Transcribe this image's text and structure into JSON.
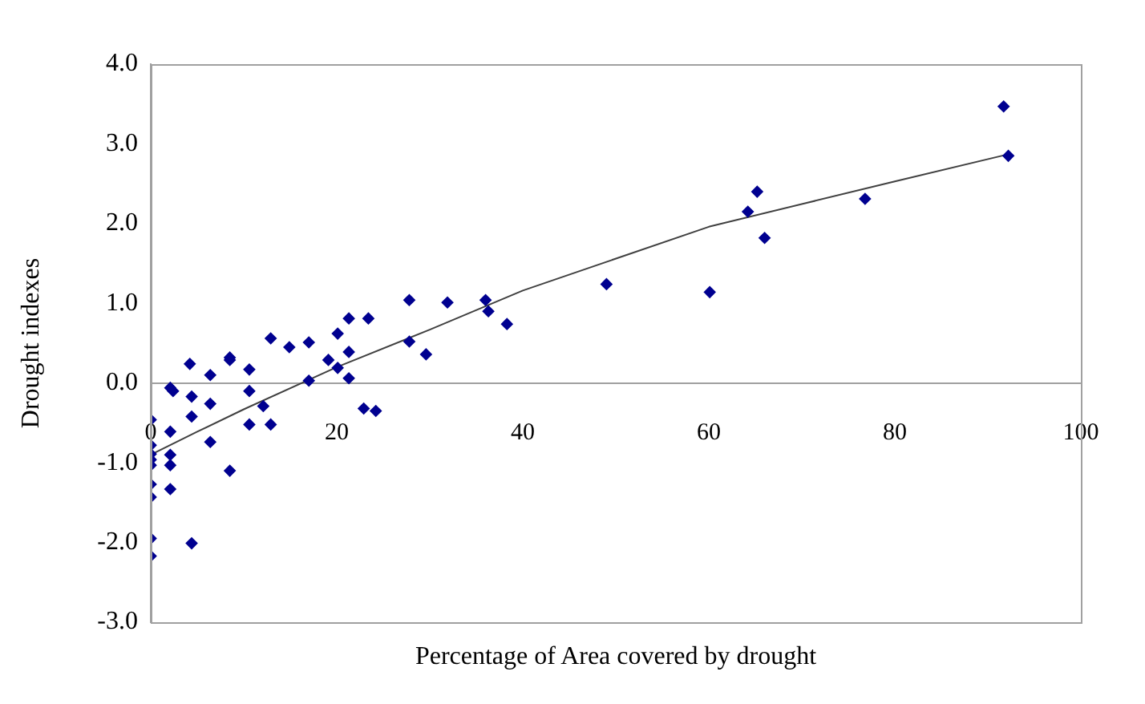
{
  "chart_data": {
    "type": "scatter",
    "xlabel": "Percentage of Area covered by drought",
    "ylabel": "Drought indexes",
    "xlim": [
      0,
      100
    ],
    "xticks": [
      0,
      20,
      40,
      60,
      80,
      100
    ],
    "ylim": [
      -3,
      4
    ],
    "yticks": [
      {
        "value": -3,
        "label": "-3.0"
      },
      {
        "value": -2,
        "label": "-2.0"
      },
      {
        "value": -1,
        "label": "-1.0"
      },
      {
        "value": 0,
        "label": "0.0"
      },
      {
        "value": 1,
        "label": "1.0"
      },
      {
        "value": 2,
        "label": "2.0"
      },
      {
        "value": 3,
        "label": "3.0"
      },
      {
        "value": 4,
        "label": "4.0"
      }
    ],
    "grid": false,
    "legend": false,
    "marker": "diamond",
    "series": [
      {
        "color": "#000090",
        "x": [
          0,
          0,
          0,
          0,
          0,
          0,
          0,
          0,
          0,
          2.1,
          2.4,
          2.1,
          2.1,
          2.1,
          2.1,
          4.2,
          4.4,
          4.4,
          4.4,
          6.4,
          6.4,
          6.4,
          8.5,
          8.5,
          8.5,
          10.6,
          10.6,
          10.6,
          12.1,
          12.9,
          12.9,
          14.9,
          17.0,
          17.0,
          19.1,
          20.1,
          20.1,
          21.3,
          21.3,
          21.3,
          23.4,
          22.9,
          24.2,
          27.8,
          27.8,
          29.6,
          31.9,
          36.0,
          36.3,
          38.3,
          49.0,
          60.1,
          64.2,
          65.2,
          66.0,
          76.8,
          91.7,
          92.2
        ],
        "values": [
          -0.46,
          -0.78,
          -0.89,
          -0.96,
          -1.03,
          -1.27,
          -1.43,
          -1.95,
          -2.17,
          -0.06,
          -0.1,
          -0.61,
          -0.9,
          -1.03,
          -1.33,
          0.24,
          -0.17,
          -0.42,
          -2.01,
          0.1,
          -0.26,
          -0.74,
          0.32,
          0.29,
          -1.1,
          0.17,
          -0.1,
          -0.52,
          -0.29,
          0.56,
          -0.52,
          0.45,
          0.51,
          0.03,
          0.29,
          0.62,
          0.19,
          0.81,
          0.39,
          0.06,
          0.81,
          -0.32,
          -0.35,
          1.04,
          0.52,
          0.36,
          1.01,
          1.04,
          0.9,
          0.74,
          1.24,
          1.14,
          2.15,
          2.4,
          1.82,
          2.31,
          3.47,
          2.85
        ]
      },
      {
        "type": "line",
        "color": "#404040",
        "marker": "none",
        "x": [
          0,
          5,
          10,
          20,
          30,
          40,
          60,
          80,
          92.2
        ],
        "values": [
          -0.9,
          -0.61,
          -0.33,
          0.2,
          0.67,
          1.16,
          1.96,
          2.53,
          2.87
        ]
      }
    ]
  }
}
